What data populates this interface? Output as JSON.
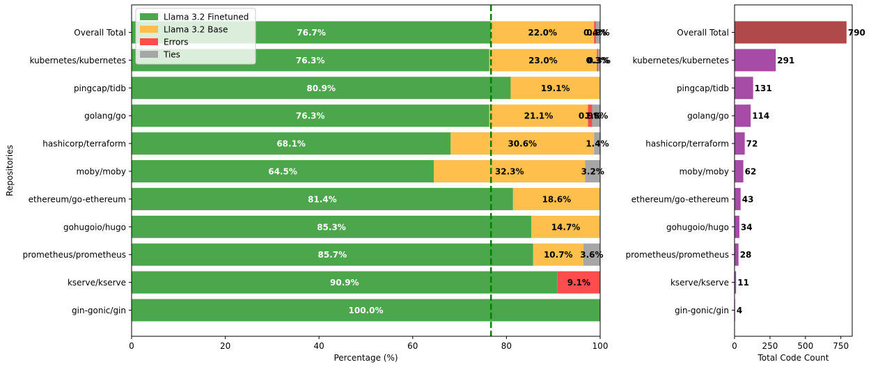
{
  "chart_data": [
    {
      "type": "bar",
      "orientation": "horizontal",
      "stacked": true,
      "title": "",
      "xlabel": "Percentage (%)",
      "ylabel": "Repositories",
      "xlim": [
        0,
        100
      ],
      "xticks": [
        "0",
        "20",
        "40",
        "60",
        "80",
        "100"
      ],
      "grid": false,
      "legend_position": "top-left",
      "categories": [
        "Overall Total",
        "kubernetes/kubernetes",
        "pingcap/tidb",
        "golang/go",
        "hashicorp/terraform",
        "moby/moby",
        "ethereum/go-ethereum",
        "gohugoio/hugo",
        "prometheus/prometheus",
        "kserve/kserve",
        "gin-gonic/gin"
      ],
      "series": [
        {
          "name": "Llama 3.2 Finetuned",
          "color": "#4ca64c",
          "label_color": "#ffffff",
          "values": [
            76.7,
            76.3,
            80.9,
            76.3,
            68.1,
            64.5,
            81.4,
            85.3,
            85.7,
            90.9,
            100.0
          ],
          "labels": [
            "76.7%",
            "76.3%",
            "80.9%",
            "76.3%",
            "68.1%",
            "64.5%",
            "81.4%",
            "85.3%",
            "85.7%",
            "90.9%",
            "100.0%"
          ]
        },
        {
          "name": "Llama 3.2 Base",
          "color": "#ffbf4c",
          "label_color": "#000000",
          "values": [
            22.0,
            23.0,
            19.1,
            21.1,
            30.6,
            32.3,
            18.6,
            14.7,
            10.7,
            0,
            0
          ],
          "labels": [
            "22.0%",
            "23.0%",
            "19.1%",
            "21.1%",
            "30.6%",
            "32.3%",
            "18.6%",
            "14.7%",
            "10.7%",
            "",
            ""
          ]
        },
        {
          "name": "Errors",
          "color": "#ff4c4c",
          "label_color": "#000000",
          "values": [
            0.4,
            0.3,
            0,
            0.9,
            0,
            0,
            0,
            0,
            0,
            9.1,
            0
          ],
          "labels": [
            "0.4%",
            "0.3%",
            "",
            "0.9%",
            "",
            "",
            "",
            "",
            "",
            "9.1%",
            ""
          ]
        },
        {
          "name": "Ties",
          "color": "#a6a6a6",
          "label_color": "#000000",
          "values": [
            0.9,
            0.3,
            0,
            1.8,
            1.4,
            3.2,
            0,
            0,
            3.6,
            0,
            0
          ],
          "labels": [
            "0.9%",
            "0.3%",
            "",
            "1.8%",
            "1.4%",
            "3.2%",
            "",
            "",
            "3.6%",
            "",
            ""
          ]
        }
      ],
      "reference_line": {
        "value": 76.7,
        "color": "#008000",
        "style": "dashed"
      }
    },
    {
      "type": "bar",
      "orientation": "horizontal",
      "title": "",
      "xlabel": "Total Code Count",
      "ylabel": "",
      "xlim": [
        0,
        830
      ],
      "xticks": [
        "0",
        "250",
        "500",
        "750"
      ],
      "grid": false,
      "categories": [
        "Overall Total",
        "kubernetes/kubernetes",
        "pingcap/tidb",
        "golang/go",
        "hashicorp/terraform",
        "moby/moby",
        "ethereum/go-ethereum",
        "gohugoio/hugo",
        "prometheus/prometheus",
        "kserve/kserve",
        "gin-gonic/gin"
      ],
      "values": [
        790,
        291,
        131,
        114,
        72,
        62,
        43,
        34,
        28,
        11,
        4
      ],
      "labels": [
        "790",
        "291",
        "131",
        "114",
        "72",
        "62",
        "43",
        "34",
        "28",
        "11",
        "4"
      ],
      "colors": {
        "total": "#b04a4a",
        "repo": "#a64ca6"
      }
    }
  ]
}
